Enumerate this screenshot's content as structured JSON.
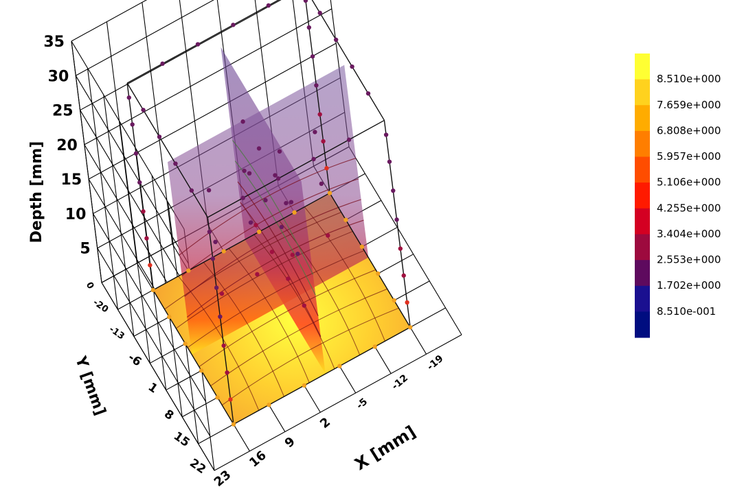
{
  "chart_data": {
    "type": "scatter",
    "xlabel": "X [mm]",
    "ylabel": "Y [mm]",
    "zlabel": "Depth [mm]",
    "x_ticks": [
      "23",
      "16",
      "9",
      "2",
      "-5",
      "-12",
      "-19"
    ],
    "y_ticks": [
      "22",
      "15",
      "8",
      "1",
      "-6",
      "-13",
      "-20"
    ],
    "z_ticks": [
      "0",
      "5",
      "10",
      "15",
      "20",
      "25",
      "30",
      "35"
    ],
    "zlim": [
      0,
      35
    ],
    "grid": true,
    "colorbar": {
      "labels": [
        "8.510e+000",
        "7.659e+000",
        "6.808e+000",
        "5.957e+000",
        "5.106e+000",
        "4.255e+000",
        "3.404e+000",
        "2.553e+000",
        "1.702e+000",
        "8.510e-001"
      ],
      "colors": [
        "#ffff33",
        "#ffd21e",
        "#ffac00",
        "#ff7e00",
        "#ff4d00",
        "#ff1a00",
        "#d40022",
        "#9d0a3e",
        "#5e0a5e",
        "#1a1090",
        "#000d80"
      ]
    }
  }
}
